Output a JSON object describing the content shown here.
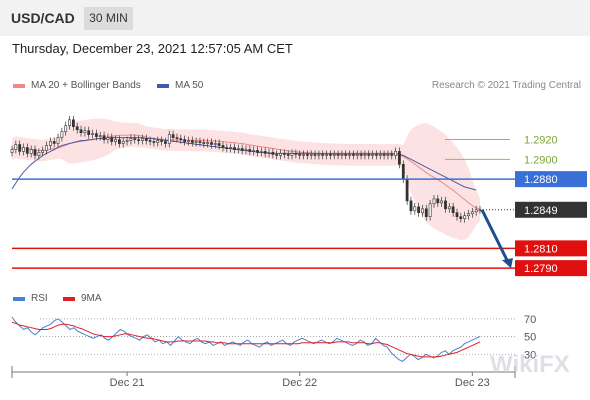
{
  "header": {
    "symbol": "USD/CAD",
    "timeframe": "30 MIN"
  },
  "datetime": "Thursday, December 23, 2021 12:57:05 AM CET",
  "legend": {
    "ma20": {
      "label": "MA 20 + Bollinger Bands",
      "color": "#f08a8a"
    },
    "ma50": {
      "label": "MA 50",
      "color": "#3a5ea8"
    },
    "credit": "Research © 2021 Trading Central"
  },
  "rsi_legend": {
    "rsi": {
      "label": "RSI",
      "color": "#4a7fd4"
    },
    "ma9": {
      "label": "9MA",
      "color": "#e02020"
    }
  },
  "watermark": "WikiFX",
  "chart_data": [
    {
      "type": "line",
      "title": "USD/CAD 30 MIN",
      "ylim": [
        1.2778,
        1.296
      ],
      "x_ticks": [
        {
          "index": 30,
          "label": "Dec 21"
        },
        {
          "index": 75,
          "label": "Dec 22"
        },
        {
          "index": 120,
          "label": "Dec 23"
        }
      ],
      "close": [
        1.291,
        1.2915,
        1.2908,
        1.2912,
        1.2906,
        1.291,
        1.2904,
        1.2907,
        1.2909,
        1.2914,
        1.2918,
        1.2916,
        1.2922,
        1.2928,
        1.2934,
        1.294,
        1.2933,
        1.293,
        1.2927,
        1.2929,
        1.2925,
        1.2926,
        1.2923,
        1.2924,
        1.292,
        1.2922,
        1.2918,
        1.292,
        1.2916,
        1.2918,
        1.2919,
        1.2921,
        1.292,
        1.2919,
        1.2921,
        1.2919,
        1.2918,
        1.2917,
        1.2919,
        1.2918,
        1.2916,
        1.2925,
        1.2922,
        1.2921,
        1.292,
        1.2918,
        1.2919,
        1.2917,
        1.2918,
        1.2917,
        1.2916,
        1.2917,
        1.2915,
        1.2916,
        1.2914,
        1.2912,
        1.2911,
        1.2912,
        1.291,
        1.2911,
        1.2909,
        1.291,
        1.2908,
        1.2909,
        1.2907,
        1.2908,
        1.2906,
        1.2907,
        1.2905,
        1.2904,
        1.2906,
        1.2905,
        1.2904,
        1.2906,
        1.2905,
        1.2904,
        1.2905,
        1.2904,
        1.2905,
        1.2904,
        1.2905,
        1.2904,
        1.2905,
        1.2904,
        1.2905,
        1.2904,
        1.2905,
        1.2904,
        1.2905,
        1.2904,
        1.2905,
        1.2904,
        1.2905,
        1.2904,
        1.2905,
        1.2904,
        1.2905,
        1.2904,
        1.2905,
        1.2904,
        1.2908,
        1.2895,
        1.288,
        1.2858,
        1.2848,
        1.2852,
        1.2846,
        1.285,
        1.2842,
        1.2855,
        1.286,
        1.2856,
        1.2858,
        1.285,
        1.2852,
        1.2846,
        1.2842,
        1.284,
        1.2843,
        1.2845,
        1.2847,
        1.2849,
        1.2849
      ],
      "ma50": [
        1.287,
        1.2876,
        1.2882,
        1.2887,
        1.2891,
        1.2895,
        1.2898,
        1.2901,
        1.2904,
        1.2906,
        1.2908,
        1.291,
        1.2912,
        1.2914,
        1.2915,
        1.2916,
        1.2917,
        1.2918,
        1.2919,
        1.2919,
        1.292,
        1.292,
        1.2921,
        1.2921,
        1.2921,
        1.2921,
        1.2922,
        1.2922,
        1.2922,
        1.2922,
        1.2922,
        1.2922,
        1.2922,
        1.2922,
        1.2922,
        1.2921,
        1.2921,
        1.2921,
        1.292,
        1.292,
        1.2919,
        1.2919,
        1.2918,
        1.2918,
        1.2917,
        1.2917,
        1.2916,
        1.2916,
        1.2915,
        1.2915,
        1.2914,
        1.2914,
        1.2913,
        1.2913,
        1.2912,
        1.2912,
        1.2911,
        1.2911,
        1.291,
        1.291,
        1.2909,
        1.2909,
        1.2908,
        1.2908,
        1.2907,
        1.2907,
        1.2907,
        1.2906,
        1.2906,
        1.2906,
        1.2906,
        1.2906,
        1.2906,
        1.2906,
        1.2906,
        1.2906,
        1.2906,
        1.2906,
        1.2906,
        1.2906,
        1.2906,
        1.2906,
        1.2906,
        1.2906,
        1.2906,
        1.2906,
        1.2906,
        1.2906,
        1.2906,
        1.2906,
        1.2906,
        1.2906,
        1.2906,
        1.2906,
        1.2906,
        1.2906,
        1.2906,
        1.2906,
        1.2906,
        1.2906,
        1.2906,
        1.2905,
        1.2904,
        1.2902,
        1.29,
        1.2898,
        1.2896,
        1.2894,
        1.2892,
        1.289,
        1.2888,
        1.2886,
        1.2884,
        1.2882,
        1.288,
        1.2878,
        1.2876,
        1.2874,
        1.2872,
        1.2871,
        1.287,
        1.2869
      ],
      "levels": [
        {
          "value": "1.2920",
          "kind": "target",
          "color": "#8bbf4d"
        },
        {
          "value": "1.2900",
          "kind": "target",
          "color": "#8bbf4d"
        },
        {
          "value": "1.2880",
          "kind": "pivot",
          "color": "#3a6fd8"
        },
        {
          "value": "1.2849",
          "kind": "last",
          "color": "#333333"
        },
        {
          "value": "1.2810",
          "kind": "support",
          "color": "#e01010"
        },
        {
          "value": "1.2790",
          "kind": "support",
          "color": "#e01010"
        }
      ],
      "forecast_arrow": {
        "from": 1.2849,
        "to": 1.279,
        "color": "#1f4f8a"
      }
    },
    {
      "type": "line",
      "title": "RSI",
      "ylim": [
        10,
        80
      ],
      "y_ticks": [
        "70",
        "50",
        "30"
      ],
      "series": [
        {
          "name": "RSI",
          "values": [
            72,
            66,
            62,
            58,
            60,
            55,
            52,
            56,
            60,
            62,
            64,
            68,
            70,
            66,
            62,
            58,
            60,
            56,
            54,
            52,
            50,
            48,
            50,
            52,
            48,
            46,
            50,
            54,
            58,
            56,
            52,
            50,
            48,
            46,
            50,
            52,
            48,
            44,
            46,
            42,
            44,
            40,
            45,
            50,
            46,
            44,
            42,
            46,
            48,
            44,
            42,
            44,
            40,
            42,
            44,
            40,
            42,
            44,
            42,
            40,
            44,
            46,
            42,
            40,
            38,
            42,
            44,
            40,
            42,
            44,
            46,
            42,
            40,
            44,
            46,
            48,
            46,
            44,
            42,
            44,
            46,
            44,
            42,
            44,
            48,
            46,
            44,
            42,
            40,
            42,
            46,
            44,
            40,
            42,
            48,
            44,
            40,
            38,
            32,
            28,
            24,
            22,
            26,
            30,
            28,
            24,
            26,
            30,
            28,
            26,
            28,
            32,
            34,
            30,
            34,
            36,
            38,
            42,
            44,
            46,
            48,
            50
          ]
        },
        {
          "name": "9MA",
          "values": [
            66,
            65,
            63,
            62,
            61,
            60,
            59,
            58,
            58,
            58,
            59,
            61,
            63,
            64,
            64,
            63,
            62,
            60,
            59,
            57,
            55,
            53,
            52,
            51,
            50,
            50,
            50,
            51,
            52,
            53,
            53,
            52,
            51,
            50,
            49,
            48,
            48,
            47,
            46,
            45,
            44,
            44,
            44,
            45,
            45,
            45,
            45,
            45,
            45,
            45,
            45,
            44,
            44,
            43,
            43,
            43,
            42,
            42,
            42,
            42,
            42,
            42,
            42,
            42,
            42,
            42,
            42,
            42,
            42,
            42,
            42,
            42,
            42,
            42,
            42,
            43,
            43,
            43,
            43,
            43,
            43,
            43,
            43,
            43,
            44,
            44,
            44,
            44,
            43,
            43,
            43,
            43,
            42,
            42,
            43,
            43,
            42,
            41,
            39,
            37,
            35,
            33,
            31,
            30,
            29,
            28,
            27,
            27,
            27,
            27,
            27,
            28,
            29,
            30,
            31,
            32,
            34,
            36,
            38,
            40,
            42,
            44
          ]
        }
      ]
    }
  ]
}
